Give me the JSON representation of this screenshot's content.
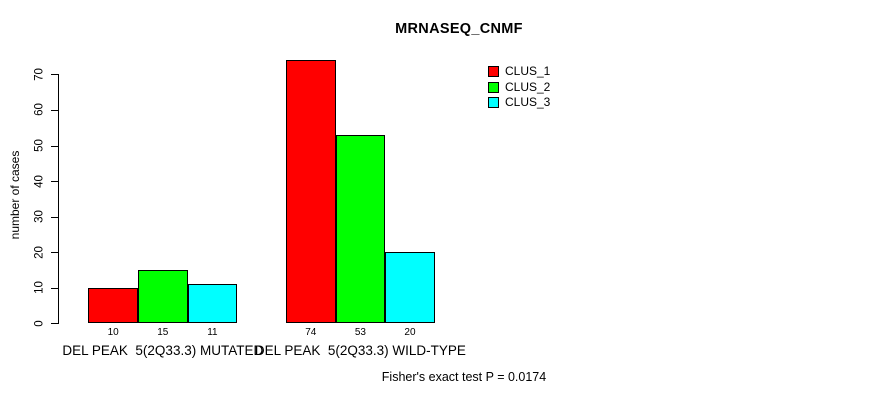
{
  "chart_data": {
    "type": "bar",
    "title": "MRNASEQ_CNMF",
    "ylabel": "number of cases",
    "xlabel": "",
    "ylim": [
      0,
      74
    ],
    "yticks": [
      0,
      10,
      20,
      30,
      40,
      50,
      60,
      70
    ],
    "grid": false,
    "legend_position": "top-right-inside",
    "categories": [
      "DEL PEAK  5(2Q33.3) MUTATED",
      "DEL PEAK  5(2Q33.3) WILD-TYPE"
    ],
    "series": [
      {
        "name": "CLUS_1",
        "color": "#ff0000",
        "values": [
          10,
          74
        ]
      },
      {
        "name": "CLUS_2",
        "color": "#00ff00",
        "values": [
          15,
          53
        ]
      },
      {
        "name": "CLUS_3",
        "color": "#00ffff",
        "values": [
          11,
          20
        ]
      }
    ],
    "show_bar_values": true,
    "annotation": "Fisher's exact test P = 0.0174",
    "colors": {
      "background": "#ffffff",
      "axis": "#000000",
      "text": "#000000",
      "bar_border": "#000000"
    }
  }
}
